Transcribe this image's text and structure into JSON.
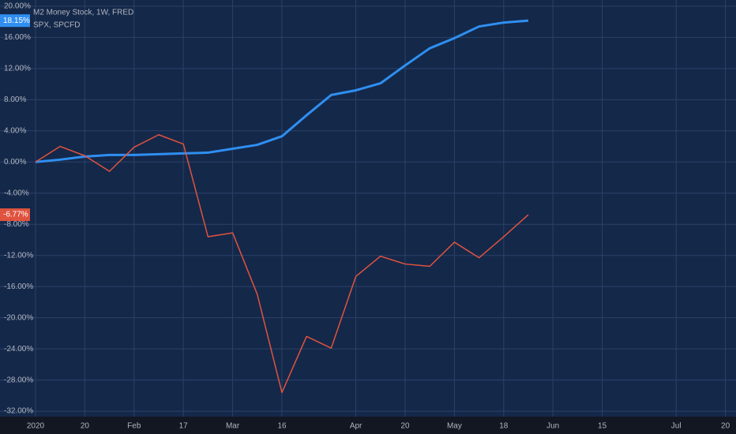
{
  "chart_data": {
    "type": "line",
    "categories": [
      "2020",
      null,
      "20",
      null,
      "Feb",
      null,
      "17",
      null,
      "Mar",
      null,
      "16",
      null,
      null,
      "Apr",
      null,
      "20",
      null,
      "May",
      null,
      "18",
      null,
      "Jun",
      null,
      "15",
      null,
      null,
      "Jul",
      null,
      "20"
    ],
    "series": [
      {
        "name": "M2 Money Stock, 1W, FRED",
        "color": "#2f8ff0",
        "values": [
          0,
          0.3,
          0.7,
          0.9,
          0.9,
          1.0,
          1.1,
          1.2,
          1.7,
          2.2,
          3.3,
          6.0,
          8.6,
          9.2,
          10.1,
          12.4,
          14.6,
          15.9,
          17.4,
          17.9,
          18.15,
          null,
          null,
          null,
          null,
          null,
          null,
          null,
          null
        ],
        "value_labels": [
          null,
          null,
          null,
          null,
          null,
          null,
          null,
          null,
          null,
          null,
          null,
          null,
          null,
          null,
          null,
          null,
          null,
          null,
          null,
          null,
          "18.15%",
          null,
          null,
          null,
          null,
          null,
          null,
          null,
          null
        ]
      },
      {
        "name": "SPX, SPCFD",
        "color": "#e0533f",
        "values": [
          0,
          2.0,
          0.8,
          -1.2,
          1.9,
          3.5,
          2.3,
          -9.6,
          -9.1,
          -17.0,
          -29.6,
          -22.4,
          -23.9,
          -14.7,
          -12.1,
          -13.1,
          -13.4,
          -10.3,
          -12.3,
          -9.6,
          -6.77,
          null,
          null,
          null,
          null,
          null,
          null,
          null,
          null
        ],
        "value_labels": [
          null,
          null,
          null,
          null,
          null,
          null,
          null,
          null,
          null,
          null,
          null,
          null,
          null,
          null,
          null,
          null,
          null,
          null,
          null,
          null,
          "-6.77%",
          null,
          null,
          null,
          null,
          null,
          null,
          null,
          null
        ]
      }
    ],
    "ylim": [
      -32.7,
      20.8
    ],
    "yticks": [
      {
        "value": 20,
        "label": "20.00%"
      },
      {
        "value": 16,
        "label": "16.00%"
      },
      {
        "value": 12,
        "label": "12.00%"
      },
      {
        "value": 8,
        "label": "8.00%"
      },
      {
        "value": 4,
        "label": "4.00%"
      },
      {
        "value": 0,
        "label": "0.00%"
      },
      {
        "value": -4,
        "label": "-4.00%"
      },
      {
        "value": -8,
        "label": "-8.00%"
      },
      {
        "value": -12,
        "label": "-12.00%"
      },
      {
        "value": -16,
        "label": "-16.00%"
      },
      {
        "value": -20,
        "label": "-20.00%"
      },
      {
        "value": -24,
        "label": "-24.00%"
      },
      {
        "value": -28,
        "label": "-28.00%"
      },
      {
        "value": -32,
        "label": "-32.00%"
      }
    ],
    "grid": true
  }
}
